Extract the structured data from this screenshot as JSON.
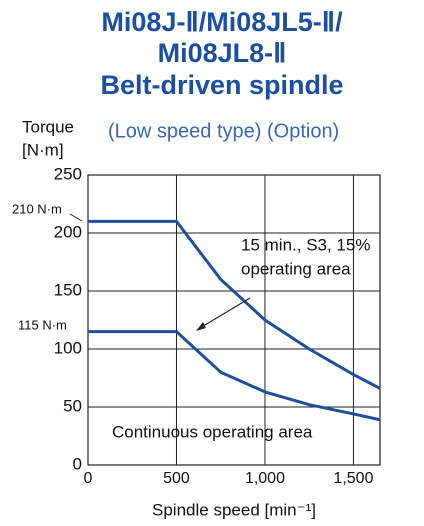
{
  "chart_data": {
    "type": "line",
    "title": [
      "Mi08J-Ⅱ/Mi08JL5-Ⅱ/",
      "Mi08JL8-Ⅱ",
      "Belt-driven spindle"
    ],
    "subtitle": "(Low speed type) (Option)",
    "ylabel": [
      "Torque",
      "[N·m]"
    ],
    "xlabel": "Spindle speed [min⁻¹]",
    "x": [
      0,
      500,
      750,
      1000,
      1250,
      1500,
      1650
    ],
    "series": [
      {
        "name": "15 min., S3, 15% operating area",
        "color": "#1f4e9c",
        "values": [
          210,
          210,
          160,
          125,
          100,
          78,
          66
        ]
      },
      {
        "name": "Continuous operating area",
        "color": "#1f4e9c",
        "values": [
          115,
          115,
          80,
          63,
          52,
          44,
          39
        ]
      }
    ],
    "annotations": [
      "210 N·m",
      "115 N·m",
      "15 min., S3, 15%",
      "operating area",
      "Continuous operating area"
    ],
    "xlim": [
      0,
      1650
    ],
    "ylim": [
      0,
      250
    ],
    "xticks": [
      0,
      500,
      {
        "value": 1000,
        "label": "1,000"
      },
      {
        "value": 1500,
        "label": "1,500"
      }
    ],
    "yticks": [
      0,
      50,
      100,
      150,
      200,
      250
    ],
    "grid": true
  }
}
